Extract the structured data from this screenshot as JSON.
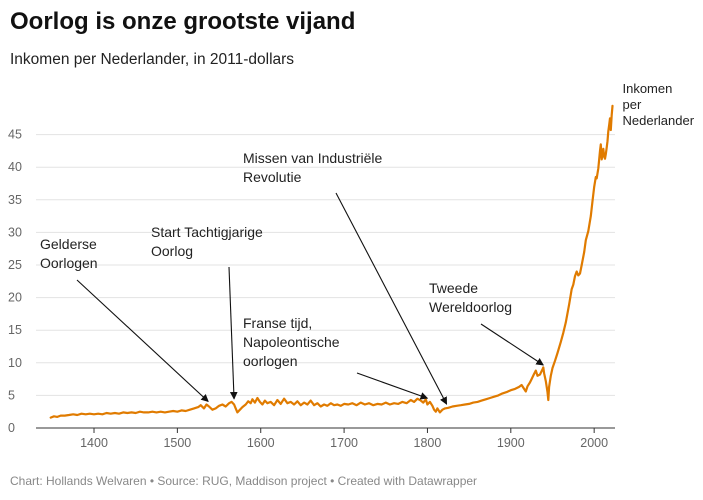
{
  "header": {
    "title": "Oorlog is onze grootste vijand",
    "subtitle": "Inkomen per Nederlander, in 2011-dollars"
  },
  "footer": {
    "text": "Chart: Hollands Welvaren • Source: RUG, Maddison project • Created with Datawrapper"
  },
  "chart_data": {
    "type": "line",
    "title": "Oorlog is onze grootste vijand",
    "subtitle": "Inkomen per Nederlander, in 2011-dollars",
    "xlim": [
      1340,
      2025
    ],
    "ylim": [
      0,
      50
    ],
    "x_ticks": [
      1400,
      1500,
      1600,
      1700,
      1800,
      1900,
      2000
    ],
    "y_ticks": [
      0,
      5,
      10,
      15,
      20,
      25,
      30,
      35,
      40,
      45
    ],
    "grid": true,
    "line_color": "#e07b00",
    "series": [
      {
        "name": "Inkomen per Nederlander",
        "points": [
          [
            1348,
            1.6
          ],
          [
            1352,
            1.8
          ],
          [
            1356,
            1.7
          ],
          [
            1360,
            1.9
          ],
          [
            1365,
            1.9
          ],
          [
            1370,
            2.0
          ],
          [
            1375,
            2.1
          ],
          [
            1380,
            2.0
          ],
          [
            1385,
            2.2
          ],
          [
            1390,
            2.1
          ],
          [
            1395,
            2.2
          ],
          [
            1400,
            2.1
          ],
          [
            1405,
            2.2
          ],
          [
            1410,
            2.1
          ],
          [
            1415,
            2.3
          ],
          [
            1420,
            2.2
          ],
          [
            1425,
            2.3
          ],
          [
            1430,
            2.2
          ],
          [
            1435,
            2.4
          ],
          [
            1440,
            2.3
          ],
          [
            1445,
            2.4
          ],
          [
            1450,
            2.3
          ],
          [
            1455,
            2.5
          ],
          [
            1460,
            2.4
          ],
          [
            1465,
            2.4
          ],
          [
            1470,
            2.5
          ],
          [
            1475,
            2.4
          ],
          [
            1480,
            2.5
          ],
          [
            1485,
            2.4
          ],
          [
            1490,
            2.5
          ],
          [
            1495,
            2.6
          ],
          [
            1500,
            2.5
          ],
          [
            1505,
            2.7
          ],
          [
            1510,
            2.6
          ],
          [
            1515,
            2.8
          ],
          [
            1520,
            3.0
          ],
          [
            1525,
            3.2
          ],
          [
            1528,
            3.5
          ],
          [
            1532,
            3.0
          ],
          [
            1535,
            3.6
          ],
          [
            1538,
            3.3
          ],
          [
            1542,
            2.8
          ],
          [
            1546,
            3.0
          ],
          [
            1550,
            3.4
          ],
          [
            1554,
            3.6
          ],
          [
            1558,
            3.3
          ],
          [
            1562,
            3.8
          ],
          [
            1565,
            4.0
          ],
          [
            1568,
            3.6
          ],
          [
            1570,
            3.0
          ],
          [
            1572,
            2.4
          ],
          [
            1575,
            2.8
          ],
          [
            1578,
            3.2
          ],
          [
            1582,
            3.6
          ],
          [
            1585,
            4.1
          ],
          [
            1588,
            3.8
          ],
          [
            1590,
            4.4
          ],
          [
            1593,
            3.9
          ],
          [
            1596,
            4.6
          ],
          [
            1599,
            4.0
          ],
          [
            1602,
            3.6
          ],
          [
            1605,
            4.2
          ],
          [
            1608,
            3.8
          ],
          [
            1612,
            4.0
          ],
          [
            1616,
            3.5
          ],
          [
            1620,
            4.3
          ],
          [
            1624,
            3.7
          ],
          [
            1628,
            4.5
          ],
          [
            1632,
            3.8
          ],
          [
            1636,
            4.0
          ],
          [
            1640,
            3.6
          ],
          [
            1644,
            4.1
          ],
          [
            1648,
            3.5
          ],
          [
            1652,
            3.9
          ],
          [
            1656,
            3.6
          ],
          [
            1660,
            4.2
          ],
          [
            1664,
            3.5
          ],
          [
            1668,
            3.8
          ],
          [
            1672,
            3.3
          ],
          [
            1676,
            3.6
          ],
          [
            1680,
            3.4
          ],
          [
            1684,
            3.8
          ],
          [
            1688,
            3.5
          ],
          [
            1692,
            3.6
          ],
          [
            1696,
            3.4
          ],
          [
            1700,
            3.7
          ],
          [
            1705,
            3.6
          ],
          [
            1710,
            3.8
          ],
          [
            1715,
            3.5
          ],
          [
            1720,
            3.9
          ],
          [
            1725,
            3.6
          ],
          [
            1730,
            3.8
          ],
          [
            1735,
            3.5
          ],
          [
            1740,
            3.7
          ],
          [
            1745,
            3.6
          ],
          [
            1750,
            3.9
          ],
          [
            1755,
            3.6
          ],
          [
            1760,
            3.8
          ],
          [
            1765,
            3.7
          ],
          [
            1770,
            4.0
          ],
          [
            1775,
            3.8
          ],
          [
            1780,
            4.3
          ],
          [
            1784,
            4.0
          ],
          [
            1788,
            4.5
          ],
          [
            1792,
            4.2
          ],
          [
            1795,
            3.9
          ],
          [
            1798,
            4.4
          ],
          [
            1800,
            3.6
          ],
          [
            1803,
            4.0
          ],
          [
            1806,
            3.4
          ],
          [
            1808,
            2.8
          ],
          [
            1810,
            2.5
          ],
          [
            1812,
            3.0
          ],
          [
            1815,
            2.4
          ],
          [
            1818,
            2.8
          ],
          [
            1821,
            3.0
          ],
          [
            1825,
            3.1
          ],
          [
            1830,
            3.3
          ],
          [
            1835,
            3.4
          ],
          [
            1840,
            3.5
          ],
          [
            1845,
            3.6
          ],
          [
            1850,
            3.7
          ],
          [
            1855,
            3.9
          ],
          [
            1860,
            4.0
          ],
          [
            1865,
            4.2
          ],
          [
            1870,
            4.4
          ],
          [
            1875,
            4.6
          ],
          [
            1880,
            4.8
          ],
          [
            1885,
            5.0
          ],
          [
            1890,
            5.3
          ],
          [
            1895,
            5.5
          ],
          [
            1900,
            5.8
          ],
          [
            1905,
            6.0
          ],
          [
            1910,
            6.3
          ],
          [
            1913,
            6.6
          ],
          [
            1916,
            6.0
          ],
          [
            1918,
            5.6
          ],
          [
            1920,
            6.4
          ],
          [
            1923,
            7.0
          ],
          [
            1925,
            7.5
          ],
          [
            1928,
            8.3
          ],
          [
            1930,
            8.8
          ],
          [
            1932,
            8.0
          ],
          [
            1935,
            8.2
          ],
          [
            1938,
            9.0
          ],
          [
            1939,
            9.3
          ],
          [
            1940,
            8.4
          ],
          [
            1942,
            7.2
          ],
          [
            1944,
            5.5
          ],
          [
            1945,
            4.3
          ],
          [
            1946,
            6.3
          ],
          [
            1948,
            8.0
          ],
          [
            1950,
            9.2
          ],
          [
            1953,
            10.3
          ],
          [
            1956,
            11.5
          ],
          [
            1960,
            13.2
          ],
          [
            1963,
            14.6
          ],
          [
            1966,
            16.2
          ],
          [
            1970,
            19.0
          ],
          [
            1973,
            21.3
          ],
          [
            1975,
            22.0
          ],
          [
            1977,
            23.3
          ],
          [
            1979,
            24.0
          ],
          [
            1981,
            23.4
          ],
          [
            1983,
            23.7
          ],
          [
            1985,
            25.0
          ],
          [
            1988,
            27.0
          ],
          [
            1990,
            28.8
          ],
          [
            1993,
            30.2
          ],
          [
            1996,
            32.5
          ],
          [
            1998,
            34.8
          ],
          [
            2000,
            37.0
          ],
          [
            2002,
            38.5
          ],
          [
            2003,
            38.3
          ],
          [
            2005,
            39.8
          ],
          [
            2007,
            42.5
          ],
          [
            2008,
            43.5
          ],
          [
            2009,
            41.2
          ],
          [
            2010,
            42.0
          ],
          [
            2011,
            42.8
          ],
          [
            2012,
            41.6
          ],
          [
            2013,
            41.3
          ],
          [
            2014,
            42.0
          ],
          [
            2015,
            43.0
          ],
          [
            2016,
            44.0
          ],
          [
            2017,
            45.5
          ],
          [
            2018,
            46.5
          ],
          [
            2019,
            47.5
          ],
          [
            2020,
            45.7
          ],
          [
            2021,
            48.0
          ],
          [
            2022,
            49.4
          ]
        ]
      }
    ],
    "series_label": "Inkomen per Nederlander",
    "annotations": [
      {
        "text": [
          "Gelderse",
          "Oorlogen"
        ],
        "x": 1537,
        "y": 3.6
      },
      {
        "text": [
          "Start Tachtigjarige",
          "Oorlog"
        ],
        "x": 1568,
        "y": 4.0
      },
      {
        "text": [
          "Franse tijd,",
          "Napoleontische",
          "oorlogen"
        ],
        "x": 1800,
        "y": 4.1
      },
      {
        "text": [
          "Missen van Industriële",
          "Revolutie"
        ],
        "x": 1823,
        "y": 3.2
      },
      {
        "text": [
          "Tweede",
          "Wereldoorlog"
        ],
        "x": 1939,
        "y": 9.2
      }
    ]
  }
}
